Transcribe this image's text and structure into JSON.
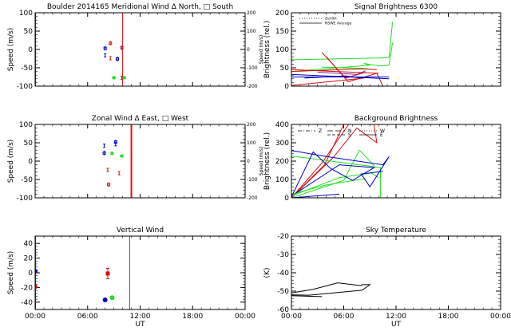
{
  "chart_data": [
    {
      "id": "meridional",
      "type": "scatter",
      "title": "Boulder   2014165     Meridional Wind   Δ North, □ South",
      "xlabel": "",
      "ylabel": "Speed (m/s)",
      "ylabel_right": "Speed (m/s)",
      "xlim": [
        0,
        24
      ],
      "ylim": [
        -100,
        100
      ],
      "yticks": [
        -100,
        -50,
        0,
        50,
        100
      ],
      "ytick_labels": [
        "-100",
        "-50",
        "0",
        "50",
        "100"
      ],
      "yticks_right": [
        "200",
        "100",
        "0",
        "-100",
        "-200"
      ],
      "vline": 10.0,
      "points": [
        {
          "x": 8.0,
          "y": 3,
          "color": "#0000c0",
          "marker": "square"
        },
        {
          "x": 8.0,
          "y": -16,
          "color": "#0000c0",
          "marker": "bar"
        },
        {
          "x": 8.6,
          "y": 17,
          "color": "#d01010",
          "marker": "square"
        },
        {
          "x": 8.6,
          "y": -24,
          "color": "#d01010",
          "marker": "bar"
        },
        {
          "x": 9.0,
          "y": -77,
          "color": "#20e020",
          "marker": "square"
        },
        {
          "x": 9.4,
          "y": -26,
          "color": "#0000c0",
          "marker": "square"
        },
        {
          "x": 9.9,
          "y": 5,
          "color": "#d01010",
          "marker": "square"
        },
        {
          "x": 9.9,
          "y": -77,
          "color": "#d01010",
          "marker": "bar"
        },
        {
          "x": 10.2,
          "y": -77,
          "color": "#20e020",
          "marker": "square"
        }
      ]
    },
    {
      "id": "zonal",
      "type": "scatter",
      "title": "Zonal Wind      Δ East, □ West",
      "ylabel": "Speed (m/s)",
      "ylabel_right": "Speed (m/s)",
      "xlim": [
        0,
        24
      ],
      "ylim": [
        -100,
        100
      ],
      "yticks": [
        -100,
        -50,
        0,
        50,
        100
      ],
      "ytick_labels": [
        "-100",
        "-50",
        "0",
        "50",
        "100"
      ],
      "yticks_right": [
        "200",
        "100",
        "0",
        "-100",
        "-200"
      ],
      "vline": 11.0,
      "points": [
        {
          "x": 7.9,
          "y": 42,
          "color": "#0000c0",
          "marker": "bar"
        },
        {
          "x": 7.9,
          "y": 22,
          "color": "#0000c0",
          "marker": "square"
        },
        {
          "x": 8.3,
          "y": -24,
          "color": "#d01010",
          "marker": "bar"
        },
        {
          "x": 8.4,
          "y": -64,
          "color": "#d01010",
          "marker": "square"
        },
        {
          "x": 8.8,
          "y": 21,
          "color": "#20e020",
          "marker": "square"
        },
        {
          "x": 9.2,
          "y": 52,
          "color": "#0000c0",
          "marker": "square"
        },
        {
          "x": 9.2,
          "y": 46,
          "color": "#0000c0",
          "marker": "bar"
        },
        {
          "x": 9.6,
          "y": -33,
          "color": "#d01010",
          "marker": "bar"
        },
        {
          "x": 9.9,
          "y": 14,
          "color": "#20e020",
          "marker": "square"
        }
      ]
    },
    {
      "id": "vertical",
      "type": "scatter",
      "title": "Vertical Wind",
      "xlabel": "UT",
      "ylabel": "Speed (m/s)",
      "xlim": [
        0,
        24
      ],
      "ylim": [
        -50,
        50
      ],
      "yticks": [
        -40,
        -20,
        0,
        20,
        40
      ],
      "ytick_labels": [
        "-40",
        "-20",
        "0",
        "20",
        "40"
      ],
      "xtick_labels": [
        "00:00",
        "06:00",
        "12:00",
        "18:00",
        "00:00"
      ],
      "vline": 10.8,
      "points": [
        {
          "x": 0.0,
          "y": 2,
          "color": "#0000c0",
          "marker": "circle"
        },
        {
          "x": 0.0,
          "y": -19,
          "color": "#d01010",
          "marker": "circle"
        },
        {
          "x": 8.0,
          "y": -37,
          "color": "#0000c0",
          "marker": "circle"
        },
        {
          "x": 8.3,
          "y": -1,
          "color": "#d01010",
          "marker": "square",
          "err": 7
        },
        {
          "x": 8.8,
          "y": -34,
          "color": "#20e020",
          "marker": "circle"
        }
      ]
    },
    {
      "id": "signal",
      "type": "line",
      "title": "Signal Brightness      6300",
      "ylabel": "Brightness (rel.)",
      "xlim": [
        0,
        24
      ],
      "ylim": [
        0,
        200
      ],
      "yticks": [
        0,
        50,
        100,
        150,
        200
      ],
      "ytick_labels": [
        "0",
        "50",
        "100",
        "150",
        "200"
      ],
      "legend": [
        {
          "label": "Zenith",
          "style": "dotted"
        },
        {
          "label": "NSWE Average",
          "style": "solid"
        }
      ],
      "legend_position": "top-left",
      "series": [
        {
          "name": "green-1",
          "color": "#20e020",
          "x": [
            0,
            10.2,
            11.2,
            11.6
          ],
          "y": [
            72,
            77,
            78,
            175
          ]
        },
        {
          "name": "green-2",
          "color": "#20e020",
          "x": [
            0,
            9.0,
            8.3,
            10.1,
            11.2,
            11.6
          ],
          "y": [
            40,
            57,
            62,
            55,
            57,
            118
          ]
        },
        {
          "name": "green-3",
          "color": "#20e020",
          "x": [
            3.5,
            8.5,
            9.0
          ],
          "y": [
            52,
            48,
            45
          ]
        },
        {
          "name": "red-1",
          "color": "#d01010",
          "x": [
            0,
            8.0,
            9.8
          ],
          "y": [
            40,
            47,
            45
          ]
        },
        {
          "name": "red-2",
          "color": "#d01010",
          "x": [
            0,
            5.5,
            8.3
          ],
          "y": [
            2,
            15,
            22
          ]
        },
        {
          "name": "red-3",
          "color": "#d01010",
          "x": [
            3.5,
            6.2,
            8.5
          ],
          "y": [
            92,
            22,
            38
          ]
        },
        {
          "name": "red-4",
          "color": "#d01010",
          "x": [
            4.0,
            6.5,
            9.8,
            10.5
          ],
          "y": [
            80,
            12,
            35,
            0
          ]
        },
        {
          "name": "red-5",
          "color": "#d01010",
          "x": [
            0,
            10.0
          ],
          "y": [
            45,
            35
          ]
        },
        {
          "name": "blue-1",
          "color": "#0000c0",
          "x": [
            0,
            11.2
          ],
          "y": [
            32,
            20
          ]
        },
        {
          "name": "blue-2",
          "color": "#0000c0",
          "x": [
            0,
            8.0,
            11.2
          ],
          "y": [
            25,
            25,
            25
          ]
        },
        {
          "name": "blue-3",
          "color": "#0000c0",
          "x": [
            1.5,
            6.2,
            8.0
          ],
          "y": [
            22,
            28,
            22
          ]
        },
        {
          "name": "purple-1",
          "color": "#8020a0",
          "x": [
            3.0,
            7.5,
            8.5
          ],
          "y": [
            38,
            32,
            42
          ]
        }
      ]
    },
    {
      "id": "background",
      "type": "line",
      "title": "Background Brightness",
      "ylabel": "Brightness (rel.)",
      "xlim": [
        0,
        24
      ],
      "ylim": [
        0,
        400
      ],
      "yticks": [
        0,
        100,
        200,
        300,
        400
      ],
      "ytick_labels": [
        "0",
        "100",
        "200",
        "300",
        "400"
      ],
      "legend": [
        {
          "label": "Z",
          "style": "dash-dot"
        },
        {
          "label": "N",
          "style": "long-dash"
        },
        {
          "label": "S",
          "style": "dash"
        },
        {
          "label": "W",
          "style": "dotted"
        },
        {
          "label": "E",
          "style": "solid"
        }
      ],
      "legend_position": "top-left",
      "series": [
        {
          "name": "red-1",
          "color": "#d01010",
          "x": [
            0,
            4.8,
            7.5,
            9.8,
            9.4,
            7.0,
            3.5,
            0
          ],
          "y": [
            0,
            220,
            380,
            300,
            420,
            430,
            190,
            0
          ]
        },
        {
          "name": "red-2",
          "color": "#d01010",
          "x": [
            0,
            3.8,
            6.0
          ],
          "y": [
            0,
            180,
            400
          ]
        },
        {
          "name": "green-1",
          "color": "#20e020",
          "x": [
            0,
            10.2,
            10.2
          ],
          "y": [
            228,
            165,
            0
          ]
        },
        {
          "name": "green-2",
          "color": "#20e020",
          "x": [
            0,
            5.5,
            9.2,
            10.0
          ],
          "y": [
            10,
            110,
            135,
            110
          ]
        },
        {
          "name": "green-3",
          "color": "#20e020",
          "x": [
            0,
            6.0,
            7.8,
            9.5
          ],
          "y": [
            0,
            95,
            260,
            175
          ]
        },
        {
          "name": "green-4",
          "color": "#20e020",
          "x": [
            0,
            4.0,
            8.5
          ],
          "y": [
            20,
            70,
            105
          ]
        },
        {
          "name": "blue-1",
          "color": "#0000c0",
          "x": [
            0,
            4.0,
            10.5,
            11.2,
            9.0,
            8.0,
            10.5
          ],
          "y": [
            258,
            225,
            180,
            225,
            60,
            130,
            145
          ]
        },
        {
          "name": "blue-2",
          "color": "#0000c0",
          "x": [
            0,
            2.5,
            4.5,
            7.0,
            9.5,
            5.5,
            0.5
          ],
          "y": [
            5,
            250,
            160,
            95,
            165,
            180,
            25
          ]
        },
        {
          "name": "blue-3",
          "color": "#0000c0",
          "x": [
            0,
            5.5
          ],
          "y": [
            0,
            20
          ]
        }
      ]
    },
    {
      "id": "skytemp",
      "type": "line",
      "title": "Sky Temperature",
      "xlabel": "UT",
      "ylabel": "(K)",
      "xlim": [
        0,
        24
      ],
      "ylim": [
        -60,
        -20
      ],
      "yticks": [
        -60,
        -50,
        -40,
        -30,
        -20
      ],
      "ytick_labels": [
        "-60",
        "-50",
        "-40",
        "-30",
        "-20"
      ],
      "xtick_labels": [
        "00:00",
        "06:00",
        "12:00",
        "18:00",
        "00:00"
      ],
      "series": [
        {
          "name": "sky-temp",
          "color": "#000000",
          "x": [
            0,
            2.5,
            5.3,
            8.0,
            8.1,
            9.0,
            8.1,
            2.0,
            0,
            0,
            3.5
          ],
          "y": [
            -51,
            -49,
            -45.5,
            -47,
            -46.5,
            -46.5,
            -49.5,
            -52.2,
            -52,
            -52.5,
            -53
          ]
        }
      ]
    }
  ]
}
